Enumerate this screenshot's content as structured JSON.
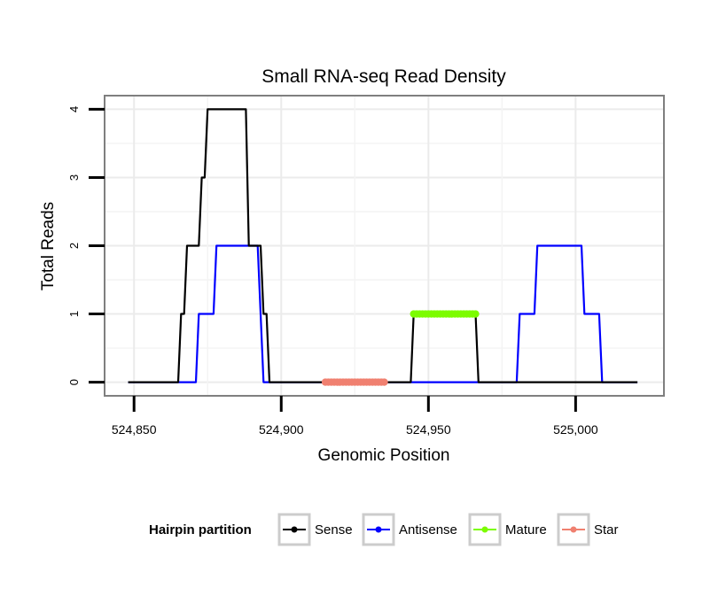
{
  "chart_data": {
    "type": "line",
    "title": "Small RNA-seq Read Density",
    "xlabel": "Genomic Position",
    "ylabel": "Total Reads",
    "xlim": [
      524840,
      525030
    ],
    "ylim": [
      -0.2,
      4.2
    ],
    "xticks": [
      524850,
      524900,
      524950,
      525000
    ],
    "xtick_labels": [
      "524,850",
      "524,900",
      "524,950",
      "525,000"
    ],
    "yticks": [
      0,
      1,
      2,
      3,
      4
    ],
    "ytick_labels": [
      "0",
      "1",
      "2",
      "3",
      "4"
    ],
    "grid": true,
    "legend": {
      "title": "Hairpin partition",
      "placement": "bottom",
      "entries": [
        "Sense",
        "Antisense",
        "Mature",
        "Star"
      ]
    },
    "series": [
      {
        "name": "Sense",
        "color": "#000000",
        "style": "line",
        "points": [
          [
            524848,
            0
          ],
          [
            524865,
            0
          ],
          [
            524866,
            1
          ],
          [
            524867,
            1
          ],
          [
            524868,
            2
          ],
          [
            524872,
            2
          ],
          [
            524873,
            3
          ],
          [
            524874,
            3
          ],
          [
            524875,
            4
          ],
          [
            524888,
            4
          ],
          [
            524889,
            2
          ],
          [
            524893,
            2
          ],
          [
            524894,
            1
          ],
          [
            524895,
            1
          ],
          [
            524896,
            0
          ],
          [
            524944,
            0
          ],
          [
            524945,
            1
          ],
          [
            524966,
            1
          ],
          [
            524967,
            0
          ],
          [
            525021,
            0
          ]
        ]
      },
      {
        "name": "Antisense",
        "color": "#0000ff",
        "style": "line",
        "points": [
          [
            524848,
            0
          ],
          [
            524871,
            0
          ],
          [
            524872,
            1
          ],
          [
            524877,
            1
          ],
          [
            524878,
            2
          ],
          [
            524892,
            2
          ],
          [
            524893,
            1
          ],
          [
            524894,
            0
          ],
          [
            524980,
            0
          ],
          [
            524981,
            1
          ],
          [
            524986,
            1
          ],
          [
            524987,
            2
          ],
          [
            525002,
            2
          ],
          [
            525003,
            1
          ],
          [
            525008,
            1
          ],
          [
            525009,
            0
          ],
          [
            525021,
            0
          ]
        ]
      },
      {
        "name": "Mature",
        "color": "#7cfc00",
        "style": "dots",
        "value": 1,
        "x_range": [
          524945,
          524966
        ]
      },
      {
        "name": "Star",
        "color": "#f08070",
        "style": "dots",
        "value": 0,
        "x_range": [
          524915,
          524935
        ]
      }
    ]
  }
}
